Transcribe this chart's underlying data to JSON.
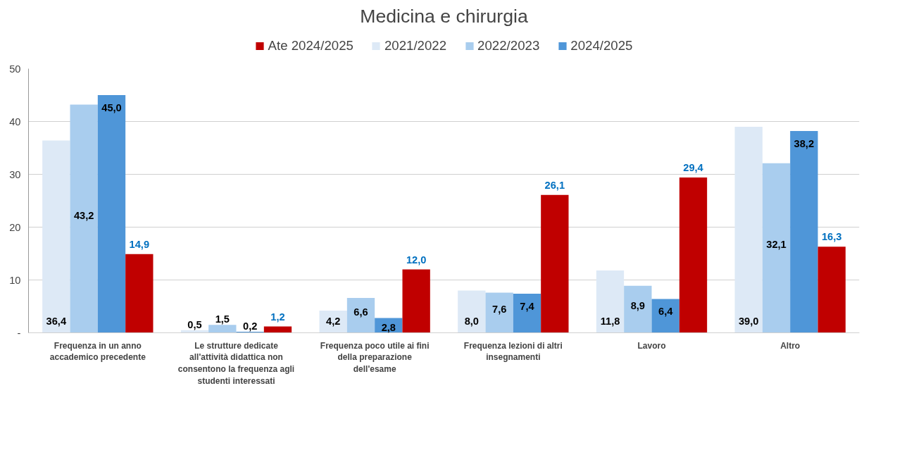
{
  "chart_data": {
    "type": "bar",
    "title": "Medicina e chirurgia",
    "categories": [
      "Frequenza in un anno accademico precedente",
      "Le strutture dedicate all'attività didattica non consentono la frequenza agli studenti interessati",
      "Frequenza poco utile ai fini della preparazione dell'esame",
      "Frequenza lezioni di altri insegnamenti",
      "Lavoro",
      "Altro"
    ],
    "series": [
      {
        "name": "2021/2022",
        "color": "#dde9f6",
        "values": [
          36.4,
          0.5,
          4.2,
          8.0,
          11.8,
          39.0
        ],
        "value_labels": [
          "36,4",
          "0,5",
          "4,2",
          "8,0",
          "11,8",
          "39,0"
        ]
      },
      {
        "name": "2022/2023",
        "color": "#a9cdee",
        "values": [
          43.2,
          1.5,
          6.6,
          7.6,
          8.9,
          32.1
        ],
        "value_labels": [
          "43,2",
          "1,5",
          "6,6",
          "7,6",
          "8,9",
          "32,1"
        ]
      },
      {
        "name": "2024/2025",
        "color": "#4f96d8",
        "values": [
          45.0,
          0.2,
          2.8,
          7.4,
          6.4,
          38.2
        ],
        "value_labels": [
          "45,0",
          "0,2",
          "2,8",
          "7,4",
          "6,4",
          "38,2"
        ]
      },
      {
        "name": "Ate 2024/2025",
        "color": "#c00000",
        "values": [
          14.9,
          1.2,
          12.0,
          26.1,
          29.4,
          16.3
        ],
        "value_labels": [
          "14,9",
          "1,2",
          "12,0",
          "26,1",
          "29,4",
          "16,3"
        ]
      }
    ],
    "ylim": [
      0,
      50
    ],
    "yticks": [
      {
        "value": 0,
        "label": "-"
      },
      10,
      20,
      30,
      40,
      50
    ],
    "grid": "y",
    "legend": "top"
  }
}
